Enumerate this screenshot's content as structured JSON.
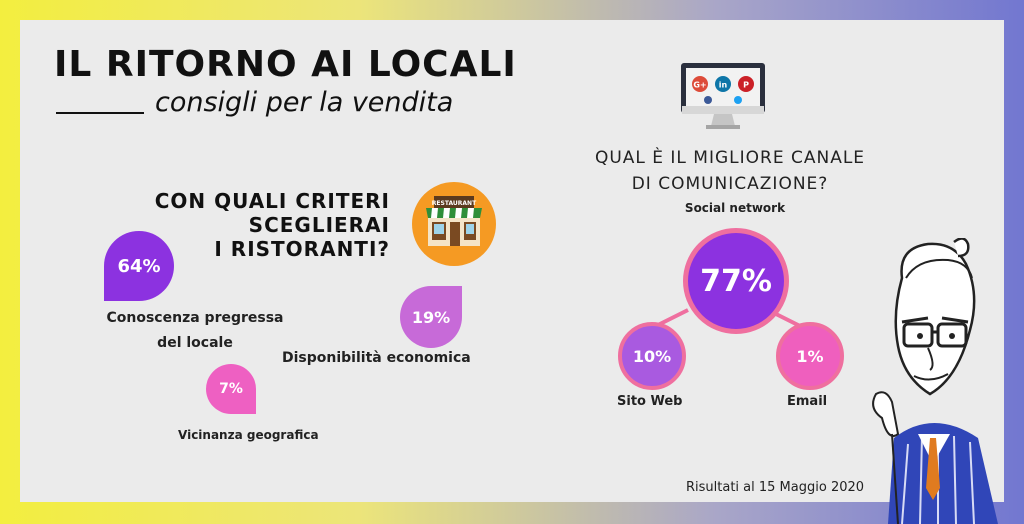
{
  "header": {
    "title": "IL RITORNO AI LOCALI",
    "subtitle": "consigli per la vendita"
  },
  "left": {
    "question_lines": [
      "CON QUALI CRITERI",
      "SCEGLIERAI",
      "I RISTORANTI?"
    ],
    "restaurant_sign": "RESTAURANT",
    "items": [
      {
        "value": "64%",
        "label_lines": [
          "Conoscenza pregressa",
          "del locale"
        ],
        "color": "#8c32e0"
      },
      {
        "value": "19%",
        "label_lines": [
          "Disponibilità economica"
        ],
        "color": "#c76ad8"
      },
      {
        "value": "7%",
        "label_lines": [
          "Vicinanza geografica"
        ],
        "color": "#ee60c2"
      }
    ]
  },
  "right": {
    "question_lines": [
      "QUAL È IL MIGLIORE CANALE",
      "DI COMUNICAZIONE?"
    ],
    "monitor_icons": [
      "google-plus-icon",
      "linkedin-icon",
      "pinterest-icon"
    ],
    "monitor_icon_glyphs": [
      "G+",
      "in",
      "P"
    ],
    "channels": [
      {
        "label": "Social network",
        "value": "77%",
        "color": "#8c32e0"
      },
      {
        "label": "Sito Web",
        "value": "10%",
        "color": "#a95ae0"
      },
      {
        "label": "Email",
        "value": "1%",
        "color": "#ef5fbe"
      }
    ]
  },
  "footer": {
    "text": "Risultati al 15 Maggio 2020"
  },
  "colors": {
    "frame_left": "#f3ee3f",
    "frame_right": "#7277d0",
    "panel": "#ebebeb",
    "accent_pink": "#ef6f9f",
    "restaurant_orange": "#f59a23"
  }
}
